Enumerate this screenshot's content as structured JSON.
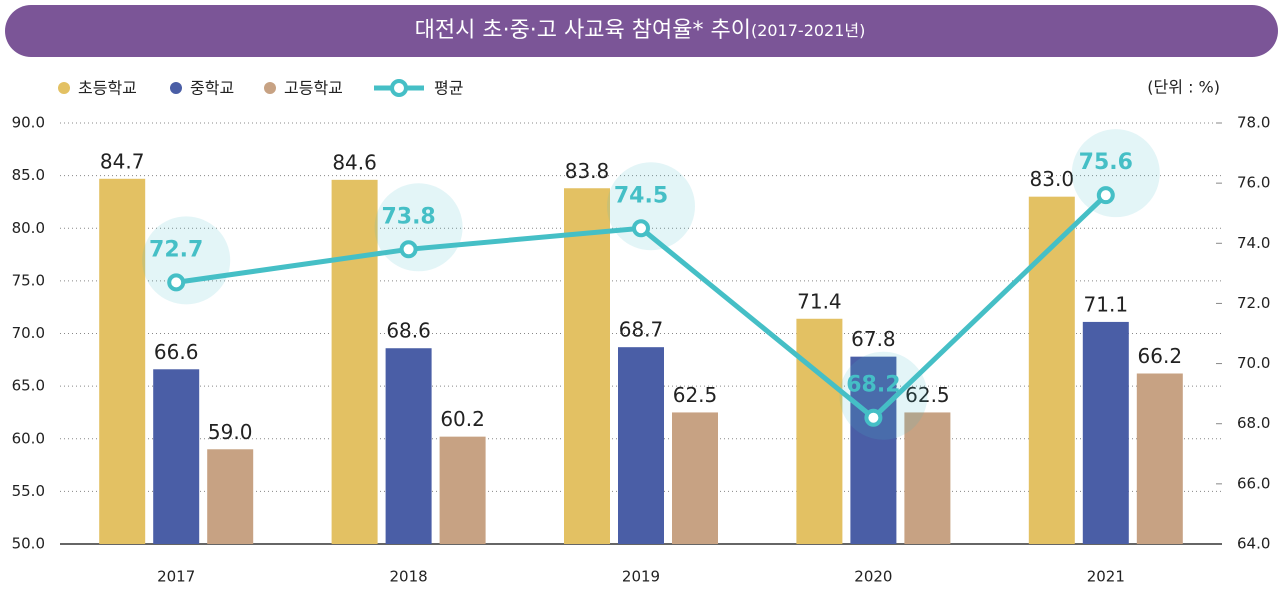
{
  "chart_data": {
    "type": "bar",
    "title": "대전시 초·중·고 사교육 참여율* 추이",
    "subtitle": "(2017-2021년)",
    "unit": "(단위 : %)",
    "categories": [
      "2017",
      "2018",
      "2019",
      "2020",
      "2021"
    ],
    "series": [
      {
        "name": "초등학교",
        "color": "#e3c163",
        "values": [
          84.7,
          84.6,
          83.8,
          71.4,
          83.0
        ],
        "value_labels": [
          "84.7",
          "84.6",
          "83.8",
          "71.4",
          "83.0"
        ]
      },
      {
        "name": "중학교",
        "color": "#4a5ea6",
        "values": [
          66.6,
          68.6,
          68.7,
          67.8,
          71.1
        ],
        "value_labels": [
          "66.6",
          "68.6",
          "68.7",
          "67.8",
          "71.1"
        ]
      },
      {
        "name": "고등학교",
        "color": "#c7a283",
        "values": [
          59.0,
          60.2,
          62.5,
          62.5,
          66.2
        ],
        "value_labels": [
          "59.0",
          "60.2",
          "62.5",
          "62.5",
          "66.2"
        ]
      },
      {
        "name": "평균",
        "type": "line",
        "axis": "y2",
        "color": "#45bfc6",
        "values": [
          72.7,
          73.8,
          74.5,
          68.2,
          75.6
        ],
        "value_labels": [
          "72.7",
          "73.8",
          "74.5",
          "68.2",
          "75.6"
        ]
      }
    ],
    "ylim": [
      50,
      90
    ],
    "yticks": [
      {
        "value": 50,
        "label": "50.0"
      },
      {
        "value": 55,
        "label": "55.0"
      },
      {
        "value": 60,
        "label": "60.0"
      },
      {
        "value": 65,
        "label": "65.0"
      },
      {
        "value": 70,
        "label": "70.0"
      },
      {
        "value": 75,
        "label": "75.0"
      },
      {
        "value": 80,
        "label": "80.0"
      },
      {
        "value": 85,
        "label": "85.0"
      },
      {
        "value": 90,
        "label": "90.0"
      }
    ],
    "y2lim": [
      64,
      78
    ],
    "y2ticks": [
      {
        "value": 64,
        "label": "64.0"
      },
      {
        "value": 66,
        "label": "66.0"
      },
      {
        "value": 68,
        "label": "68.0"
      },
      {
        "value": 70,
        "label": "70.0"
      },
      {
        "value": 72,
        "label": "72.0"
      },
      {
        "value": 74,
        "label": "74.0"
      },
      {
        "value": 76,
        "label": "76.0"
      },
      {
        "value": 78,
        "label": "78.0"
      }
    ],
    "grid": true
  }
}
